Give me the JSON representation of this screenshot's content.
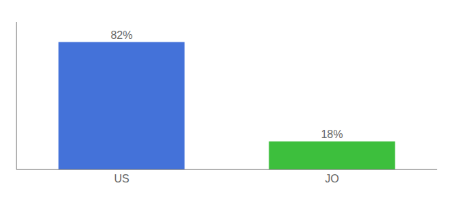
{
  "chart_data": {
    "type": "bar",
    "categories": [
      "US",
      "JO"
    ],
    "values": [
      82,
      18
    ],
    "value_labels": [
      "82%",
      "18%"
    ],
    "colors": [
      "#4472D9",
      "#3DBF3D"
    ],
    "ylim": [
      0,
      95
    ],
    "data_labels": true,
    "tick_labels": "x"
  }
}
